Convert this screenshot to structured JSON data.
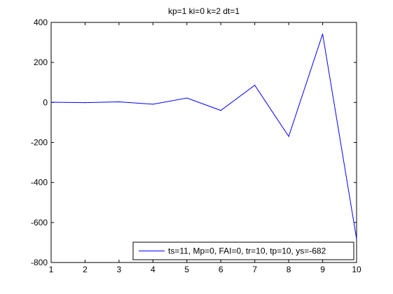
{
  "chart_data": {
    "type": "line",
    "title": "kp=1  ki=0  k=2  dt=1",
    "xlabel": "",
    "ylabel": "",
    "xlim": [
      1,
      10
    ],
    "ylim": [
      -800,
      400
    ],
    "xticks": [
      1,
      2,
      3,
      4,
      5,
      6,
      7,
      8,
      9,
      10
    ],
    "yticks": [
      400,
      200,
      0,
      -200,
      -400,
      -600,
      -800
    ],
    "grid": false,
    "legend_position": "bottom-right",
    "series": [
      {
        "name": "ts=11,  Mp=0, FAI=0, tr=10, tp=10, ys=-682",
        "color": "#0000ff",
        "x": [
          1,
          2,
          3,
          4,
          5,
          6,
          7,
          8,
          9,
          10
        ],
        "y": [
          1,
          -1,
          3,
          -9,
          22,
          -40,
          86,
          -170,
          342,
          -682
        ]
      }
    ]
  }
}
